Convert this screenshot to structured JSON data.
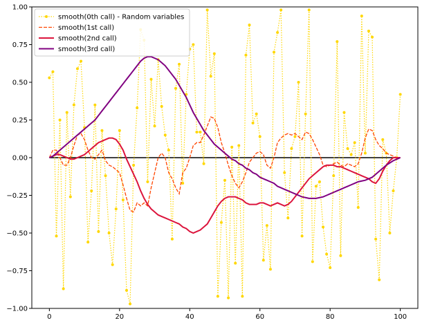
{
  "chart_data": {
    "type": "line",
    "title": "",
    "xlabel": "",
    "ylabel": "",
    "xlim": [
      -5,
      105
    ],
    "ylim": [
      -1.0,
      1.0
    ],
    "xticks": [
      0,
      20,
      40,
      60,
      80,
      100
    ],
    "xtick_labels": [
      "0",
      "20",
      "40",
      "60",
      "80",
      "100"
    ],
    "yticks": [
      -1.0,
      -0.75,
      -0.5,
      -0.25,
      0.0,
      0.25,
      0.5,
      0.75,
      1.0
    ],
    "ytick_labels": [
      "−1.00",
      "−0.75",
      "−0.50",
      "−0.25",
      "0.00",
      "0.25",
      "0.50",
      "0.75",
      "1.00"
    ],
    "grid": false,
    "legend_position": "upper-left",
    "x": [
      0,
      1,
      2,
      3,
      4,
      5,
      6,
      7,
      8,
      9,
      10,
      11,
      12,
      13,
      14,
      15,
      16,
      17,
      18,
      19,
      20,
      21,
      22,
      23,
      24,
      25,
      26,
      27,
      28,
      29,
      30,
      31,
      32,
      33,
      34,
      35,
      36,
      37,
      38,
      39,
      40,
      41,
      42,
      43,
      44,
      45,
      46,
      47,
      48,
      49,
      50,
      51,
      52,
      53,
      54,
      55,
      56,
      57,
      58,
      59,
      60,
      61,
      62,
      63,
      64,
      65,
      66,
      67,
      68,
      69,
      70,
      71,
      72,
      73,
      74,
      75,
      76,
      77,
      78,
      79,
      80,
      81,
      82,
      83,
      84,
      85,
      86,
      87,
      88,
      89,
      90,
      91,
      92,
      93,
      94,
      95,
      96,
      97,
      98,
      99,
      100
    ],
    "baseline": {
      "y": 0.0,
      "color": "#000000"
    },
    "series": [
      {
        "name": "smooth(0th call) - Random variables",
        "color": "#FFD700",
        "style": "dotted-markers",
        "values": [
          0.53,
          0.57,
          -0.52,
          0.25,
          -0.87,
          0.3,
          -0.26,
          0.35,
          0.59,
          0.64,
          0.2,
          -0.56,
          -0.22,
          0.35,
          -0.49,
          0.18,
          -0.12,
          -0.5,
          -0.71,
          -0.34,
          0.18,
          -0.28,
          -0.88,
          -0.97,
          -0.05,
          0.33,
          0.85,
          0.78,
          -0.16,
          0.52,
          0.21,
          0.65,
          0.34,
          0.15,
          0.05,
          -0.54,
          0.46,
          0.62,
          -0.17,
          0.42,
          0.72,
          0.75,
          0.17,
          0.17,
          -0.04,
          0.98,
          0.54,
          0.69,
          -0.92,
          -0.43,
          -0.15,
          -0.93,
          0.07,
          -0.7,
          0.08,
          -0.92,
          0.68,
          0.88,
          0.23,
          0.29,
          0.14,
          -0.68,
          -0.45,
          -0.74,
          0.7,
          0.83,
          0.98,
          -0.1,
          -0.4,
          0.06,
          0.14,
          0.5,
          -0.52,
          0.29,
          0.98,
          -0.69,
          -0.19,
          -0.16,
          -0.46,
          -0.64,
          -0.73,
          -0.12,
          0.77,
          -0.65,
          0.3,
          0.06,
          0.02,
          0.1,
          -0.33,
          0.94,
          0.03,
          0.84,
          0.8,
          -0.54,
          -0.81,
          0.12,
          0.03,
          -0.5,
          -0.22,
          0.0,
          0.42
        ]
      },
      {
        "name": "smooth(1st call)",
        "color": "#FF4500",
        "style": "dashed",
        "values": [
          0.0,
          0.05,
          0.05,
          0.0,
          -0.05,
          -0.05,
          0.0,
          0.08,
          0.15,
          0.16,
          0.12,
          0.05,
          0.0,
          -0.01,
          0.02,
          0.05,
          -0.02,
          -0.05,
          -0.06,
          -0.08,
          -0.1,
          -0.18,
          -0.27,
          -0.35,
          -0.36,
          -0.3,
          -0.32,
          -0.3,
          -0.32,
          -0.2,
          -0.1,
          0.0,
          0.03,
          0.0,
          -0.1,
          -0.14,
          -0.2,
          -0.24,
          -0.1,
          -0.07,
          0.0,
          0.08,
          0.1,
          0.1,
          0.15,
          0.21,
          0.27,
          0.26,
          0.2,
          0.1,
          0.03,
          -0.05,
          -0.12,
          -0.17,
          -0.2,
          -0.16,
          -0.1,
          -0.03,
          0.0,
          0.03,
          0.04,
          0.02,
          -0.05,
          -0.07,
          0.0,
          0.1,
          0.13,
          0.15,
          0.16,
          0.15,
          0.16,
          0.14,
          0.12,
          0.17,
          0.16,
          0.12,
          0.07,
          0.02,
          -0.05,
          -0.06,
          -0.05,
          -0.04,
          -0.03,
          -0.05,
          -0.06,
          -0.04,
          -0.05,
          -0.06,
          -0.04,
          0.03,
          0.13,
          0.19,
          0.18,
          0.12,
          0.08,
          0.06,
          0.03,
          0.02,
          0.01,
          0.0,
          0.0
        ]
      },
      {
        "name": "smooth(2nd call)",
        "color": "#DC143C",
        "style": "solid",
        "values": [
          0.0,
          0.01,
          0.02,
          0.02,
          0.01,
          0.0,
          -0.01,
          -0.01,
          0.0,
          0.01,
          0.02,
          0.04,
          0.06,
          0.08,
          0.1,
          0.11,
          0.12,
          0.13,
          0.13,
          0.12,
          0.09,
          0.05,
          -0.01,
          -0.06,
          -0.11,
          -0.16,
          -0.22,
          -0.27,
          -0.31,
          -0.34,
          -0.36,
          -0.38,
          -0.39,
          -0.4,
          -0.41,
          -0.42,
          -0.43,
          -0.44,
          -0.46,
          -0.47,
          -0.49,
          -0.5,
          -0.49,
          -0.48,
          -0.46,
          -0.44,
          -0.4,
          -0.36,
          -0.32,
          -0.29,
          -0.27,
          -0.26,
          -0.26,
          -0.26,
          -0.27,
          -0.28,
          -0.3,
          -0.31,
          -0.31,
          -0.31,
          -0.3,
          -0.3,
          -0.31,
          -0.32,
          -0.31,
          -0.3,
          -0.31,
          -0.32,
          -0.31,
          -0.29,
          -0.26,
          -0.23,
          -0.2,
          -0.17,
          -0.14,
          -0.12,
          -0.1,
          -0.08,
          -0.06,
          -0.05,
          -0.05,
          -0.05,
          -0.06,
          -0.06,
          -0.07,
          -0.08,
          -0.09,
          -0.1,
          -0.11,
          -0.12,
          -0.13,
          -0.14,
          -0.16,
          -0.17,
          -0.14,
          -0.09,
          -0.05,
          -0.02,
          0.0,
          0.0,
          0.0
        ]
      },
      {
        "name": "smooth(3rd call)",
        "color": "#800080",
        "style": "solid",
        "values": [
          0.0,
          0.01,
          0.03,
          0.05,
          0.07,
          0.09,
          0.11,
          0.13,
          0.15,
          0.17,
          0.19,
          0.21,
          0.23,
          0.25,
          0.28,
          0.31,
          0.34,
          0.37,
          0.4,
          0.43,
          0.46,
          0.49,
          0.52,
          0.55,
          0.58,
          0.61,
          0.64,
          0.66,
          0.67,
          0.67,
          0.66,
          0.65,
          0.63,
          0.61,
          0.58,
          0.55,
          0.52,
          0.48,
          0.44,
          0.4,
          0.35,
          0.3,
          0.26,
          0.22,
          0.18,
          0.15,
          0.12,
          0.09,
          0.07,
          0.05,
          0.03,
          0.01,
          -0.01,
          -0.02,
          -0.04,
          -0.05,
          -0.07,
          -0.08,
          -0.1,
          -0.11,
          -0.13,
          -0.14,
          -0.15,
          -0.16,
          -0.17,
          -0.19,
          -0.2,
          -0.21,
          -0.22,
          -0.23,
          -0.24,
          -0.25,
          -0.26,
          -0.265,
          -0.27,
          -0.27,
          -0.27,
          -0.265,
          -0.26,
          -0.25,
          -0.24,
          -0.23,
          -0.22,
          -0.21,
          -0.2,
          -0.19,
          -0.18,
          -0.17,
          -0.16,
          -0.155,
          -0.15,
          -0.14,
          -0.13,
          -0.11,
          -0.09,
          -0.07,
          -0.05,
          -0.035,
          -0.02,
          -0.01,
          0.0
        ]
      }
    ]
  }
}
